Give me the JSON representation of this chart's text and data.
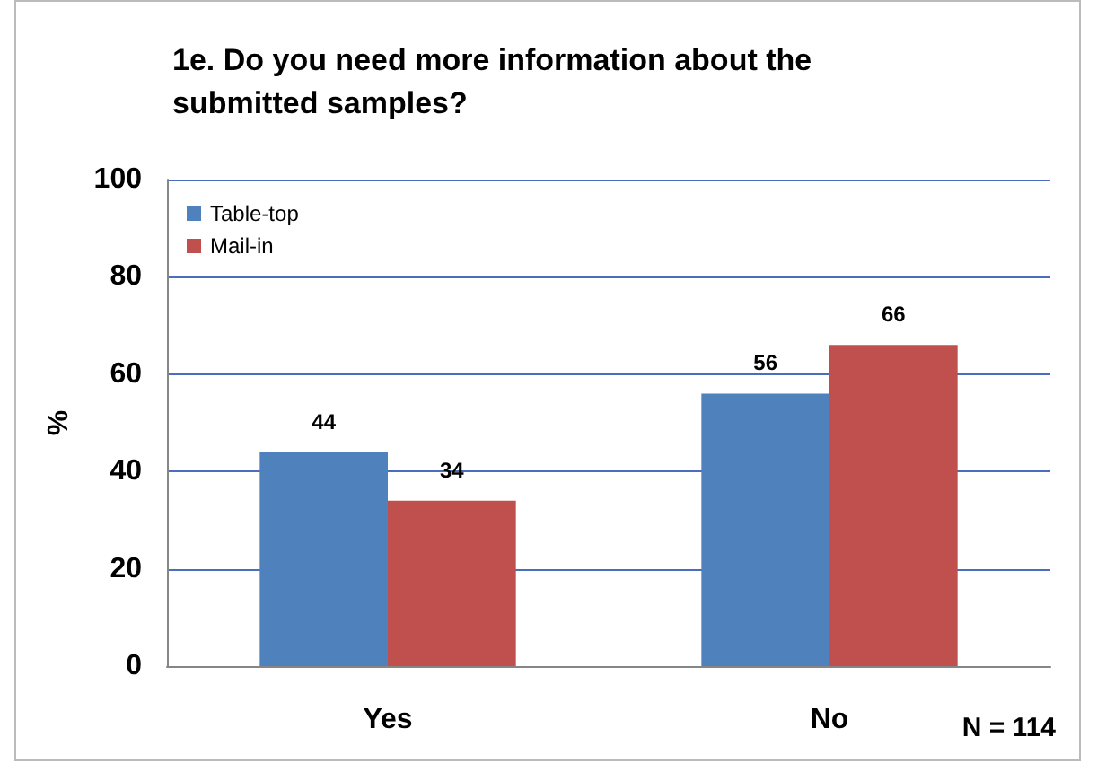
{
  "chart_data": {
    "type": "bar",
    "title": "1e. Do you need more information about the submitted samples?",
    "ylabel": "%",
    "categories": [
      "Yes",
      "No"
    ],
    "series": [
      {
        "name": "Table-top",
        "color": "#4f81bd",
        "values": [
          44,
          56
        ]
      },
      {
        "name": "Mail-in",
        "color": "#c0504d",
        "values": [
          34,
          66
        ]
      }
    ],
    "ylim": [
      0,
      100
    ],
    "yticks": [
      0,
      20,
      40,
      60,
      80,
      100
    ],
    "grid": "y",
    "legend": "top left",
    "data_labels": true,
    "annotations": [
      "N = 114"
    ]
  }
}
